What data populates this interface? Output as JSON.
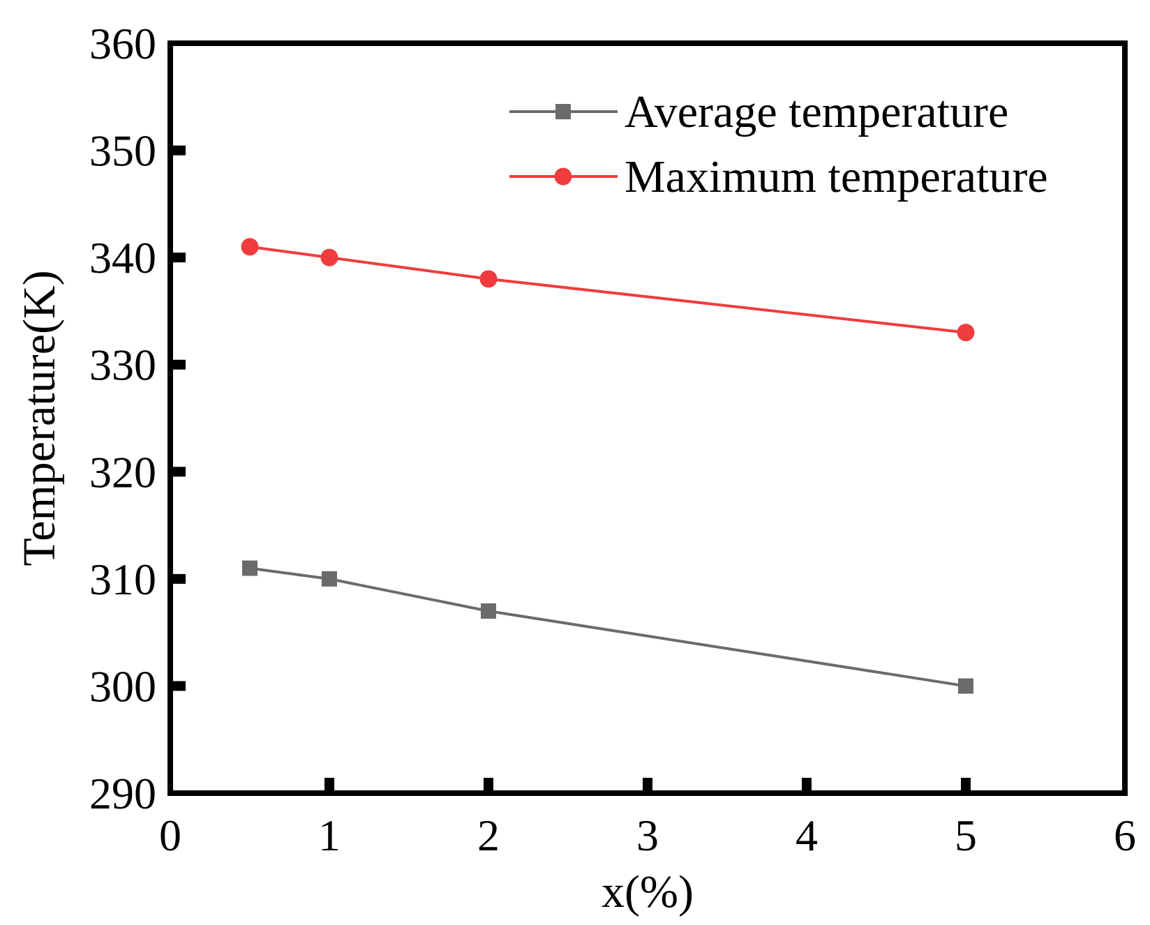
{
  "chart_data": {
    "type": "line",
    "title": "",
    "xlabel": "x(%)",
    "ylabel": "Temperature(K)",
    "xlim": [
      0,
      6
    ],
    "ylim": [
      290,
      360
    ],
    "xticks": [
      0,
      1,
      2,
      3,
      4,
      5,
      6
    ],
    "yticks": [
      290,
      300,
      310,
      320,
      330,
      340,
      350,
      360
    ],
    "grid": false,
    "legend_position": "top-right",
    "series": [
      {
        "name": "Average temperature",
        "color": "#6b6b6b",
        "marker": "square",
        "x": [
          0.5,
          1,
          2,
          5
        ],
        "y": [
          311,
          310,
          307,
          300
        ]
      },
      {
        "name": "Maximum temperature",
        "color": "#f03c3c",
        "marker": "circle",
        "x": [
          0.5,
          1,
          2,
          5
        ],
        "y": [
          341,
          340,
          338,
          333
        ]
      }
    ]
  }
}
